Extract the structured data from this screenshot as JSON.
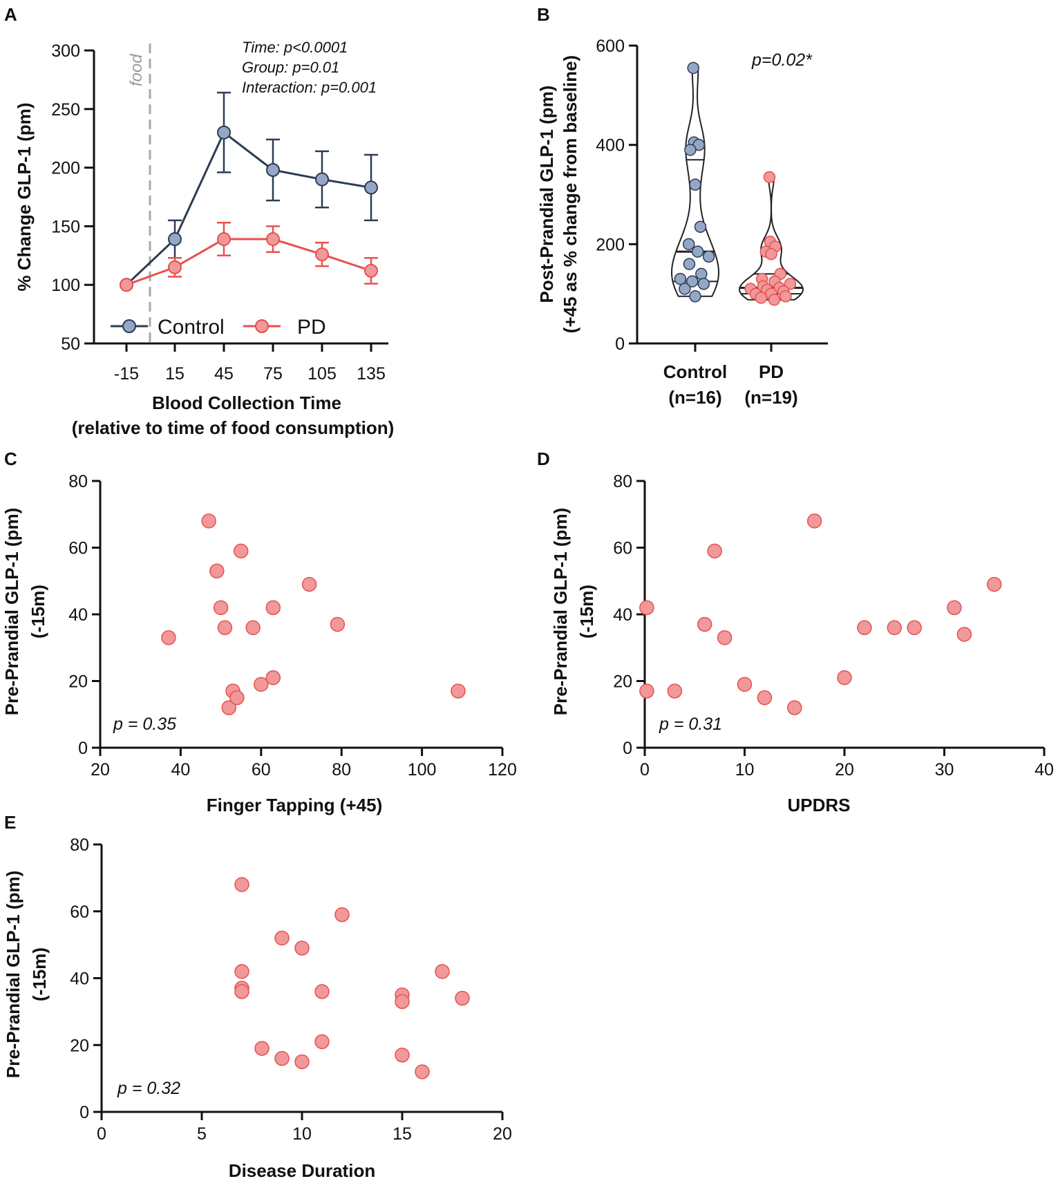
{
  "colors": {
    "control": "#94a7c4",
    "control_line": "#2d3b55",
    "pd": "#f0989a",
    "pd_line": "#e8504f",
    "food_line": "#a8a8a8",
    "violin_edge": "#222222"
  },
  "chart_data": [
    {
      "id": "A",
      "type": "line",
      "panel": "A",
      "title": "",
      "xlabel": "Blood Collection Time",
      "xlabel2": "(relative to time of food consumption)",
      "ylabel": "% Change GLP-1 (pm)",
      "categories": [
        "-15",
        "15",
        "45",
        "75",
        "105",
        "135"
      ],
      "ylim": [
        50,
        300
      ],
      "yticks": [
        50,
        100,
        150,
        200,
        250,
        300
      ],
      "food_marker_label": "food",
      "series": [
        {
          "name": "Control",
          "values": [
            100,
            139,
            230,
            198,
            190,
            183
          ],
          "errors": [
            0,
            16,
            34,
            26,
            24,
            28
          ]
        },
        {
          "name": "PD",
          "values": [
            100,
            115,
            139,
            139,
            126,
            112
          ],
          "errors": [
            0,
            8,
            14,
            11,
            10,
            11
          ]
        }
      ],
      "annotations": [
        "Time:  p<0.0001",
        "Group: p=0.01",
        "Interaction: p=0.001"
      ]
    },
    {
      "id": "B",
      "type": "violin",
      "panel": "B",
      "ylabel": "Post-Prandial GLP-1 (pm)",
      "ylabel2": "(+45 as % change from baseline)",
      "categories": [
        "Control",
        "PD"
      ],
      "category_n": [
        "(n=16)",
        "(n=19)"
      ],
      "ylim": [
        0,
        600
      ],
      "yticks": [
        0,
        200,
        400,
        600
      ],
      "annotation": "p=0.02*",
      "groups": [
        {
          "name": "Control",
          "points": [
            555,
            405,
            400,
            390,
            320,
            235,
            200,
            185,
            175,
            160,
            140,
            130,
            125,
            120,
            110,
            95
          ],
          "median": 185,
          "q1": 125,
          "q3": 370
        },
        {
          "name": "PD",
          "points": [
            335,
            205,
            195,
            185,
            180,
            140,
            130,
            125,
            120,
            115,
            112,
            110,
            108,
            105,
            100,
            100,
            95,
            92,
            88
          ],
          "median": 112,
          "q1": 100,
          "q3": 140
        }
      ]
    },
    {
      "id": "C",
      "type": "scatter",
      "panel": "C",
      "xlabel": "Finger Tapping (+45)",
      "ylabel": "Pre-Prandial GLP-1 (pm)",
      "ylabel2": "(-15m)",
      "xlim": [
        20,
        120
      ],
      "xticks": [
        20,
        40,
        60,
        80,
        100,
        120
      ],
      "ylim": [
        0,
        80
      ],
      "yticks": [
        0,
        20,
        40,
        60,
        80
      ],
      "annotation": "p = 0.35",
      "x": [
        37,
        47,
        49,
        50,
        51,
        52,
        53,
        54,
        55,
        58,
        60,
        63,
        63,
        72,
        79,
        109
      ],
      "y": [
        33,
        68,
        53,
        42,
        36,
        12,
        17,
        15,
        59,
        36,
        19,
        21,
        42,
        49,
        37,
        17
      ]
    },
    {
      "id": "D",
      "type": "scatter",
      "panel": "D",
      "xlabel": "UPDRS",
      "ylabel": "Pre-Prandial GLP-1 (pm)",
      "ylabel2": "(-15m)",
      "xlim": [
        0,
        40
      ],
      "xticks": [
        0,
        10,
        20,
        30,
        40
      ],
      "ylim": [
        0,
        80
      ],
      "yticks": [
        0,
        20,
        40,
        60,
        80
      ],
      "annotation": "p = 0.31",
      "x": [
        0.2,
        0.2,
        3,
        6,
        7,
        8,
        10,
        12,
        15,
        17,
        20,
        22,
        25,
        27,
        31,
        32,
        35
      ],
      "y": [
        42,
        17,
        17,
        37,
        59,
        33,
        19,
        15,
        12,
        68,
        21,
        36,
        36,
        36,
        42,
        34,
        49
      ]
    },
    {
      "id": "E",
      "type": "scatter",
      "panel": "E",
      "xlabel": "Disease Duration",
      "ylabel": "Pre-Prandial GLP-1 (pm)",
      "ylabel2": "(-15m)",
      "xlim": [
        0,
        20
      ],
      "xticks": [
        0,
        5,
        10,
        15,
        20
      ],
      "ylim": [
        0,
        80
      ],
      "yticks": [
        0,
        20,
        40,
        60,
        80
      ],
      "annotation": "p = 0.32",
      "x": [
        7,
        7,
        7,
        7,
        8,
        9,
        9,
        10,
        10,
        11,
        11,
        12,
        15,
        15,
        15,
        16,
        17,
        18
      ],
      "y": [
        68,
        42,
        37,
        36,
        19,
        52,
        16,
        49,
        15,
        36,
        21,
        59,
        35,
        33,
        17,
        12,
        42,
        34
      ]
    }
  ]
}
